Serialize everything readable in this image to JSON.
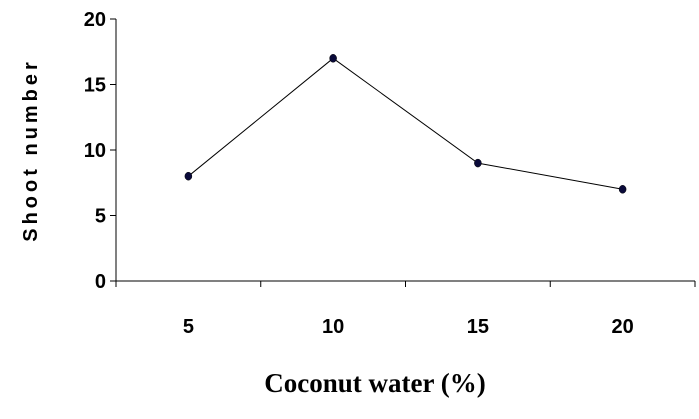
{
  "chart_data": {
    "type": "line",
    "title": "",
    "xlabel": "Coconut water (%)",
    "ylabel": "Shoot number",
    "categories": [
      "5",
      "10",
      "15",
      "20"
    ],
    "series": [
      {
        "values": [
          8,
          17,
          9,
          7
        ]
      }
    ],
    "ylim": [
      0,
      20
    ],
    "yticks": [
      "0",
      "5",
      "10",
      "15",
      "20"
    ],
    "grid": false,
    "legend": "none",
    "line_color": "#000000",
    "marker_color": "#0a0a3a"
  }
}
